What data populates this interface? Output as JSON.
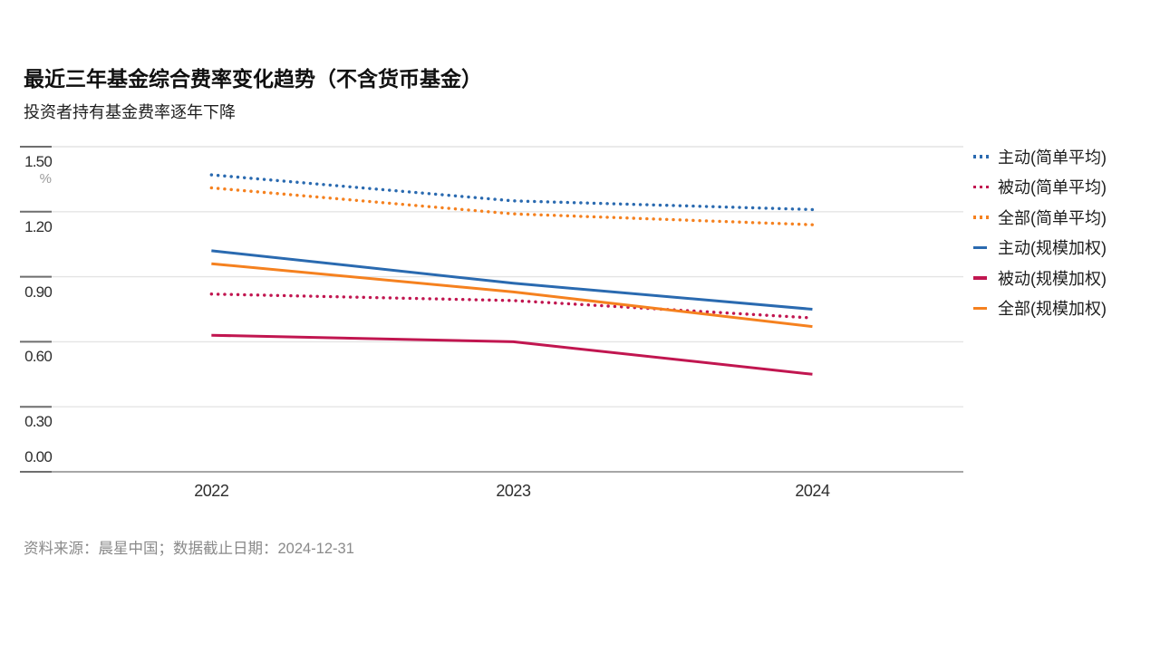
{
  "header": {
    "title": "最近三年基金综合费率变化趋势（不含货币基金）",
    "subtitle": "投资者持有基金费率逐年下降"
  },
  "chart_data": {
    "type": "line",
    "title": "最近三年基金综合费率变化趋势（不含货币基金）",
    "subtitle": "投资者持有基金费率逐年下降",
    "x": [
      "2022",
      "2023",
      "2024"
    ],
    "unit": "%",
    "ylim": [
      0,
      1.5
    ],
    "y_ticks": [
      "1.50",
      "1.20",
      "0.90",
      "0.60",
      "0.30",
      "0.00"
    ],
    "grid": true,
    "legend_position": "right",
    "series": [
      {
        "name": "主动(简单平均)",
        "style": "dotted",
        "color": "#2a6ab0",
        "values": [
          1.37,
          1.25,
          1.21
        ]
      },
      {
        "name": "被动(简单平均)",
        "style": "dotted",
        "color": "#c11650",
        "values": [
          0.82,
          0.79,
          0.71
        ]
      },
      {
        "name": "全部(简单平均)",
        "style": "dotted",
        "color": "#f5811f",
        "values": [
          1.31,
          1.19,
          1.14
        ]
      },
      {
        "name": "主动(规模加权)",
        "style": "solid",
        "color": "#2a6ab0",
        "values": [
          1.02,
          0.87,
          0.75
        ]
      },
      {
        "name": "被动(规模加权)",
        "style": "solid",
        "color": "#c11650",
        "values": [
          0.63,
          0.6,
          0.45
        ]
      },
      {
        "name": "全部(规模加权)",
        "style": "solid",
        "color": "#f5811f",
        "values": [
          0.96,
          0.83,
          0.67
        ]
      }
    ]
  },
  "footer": {
    "source": "资料来源：晨星中国；数据截止日期：2024-12-31"
  }
}
